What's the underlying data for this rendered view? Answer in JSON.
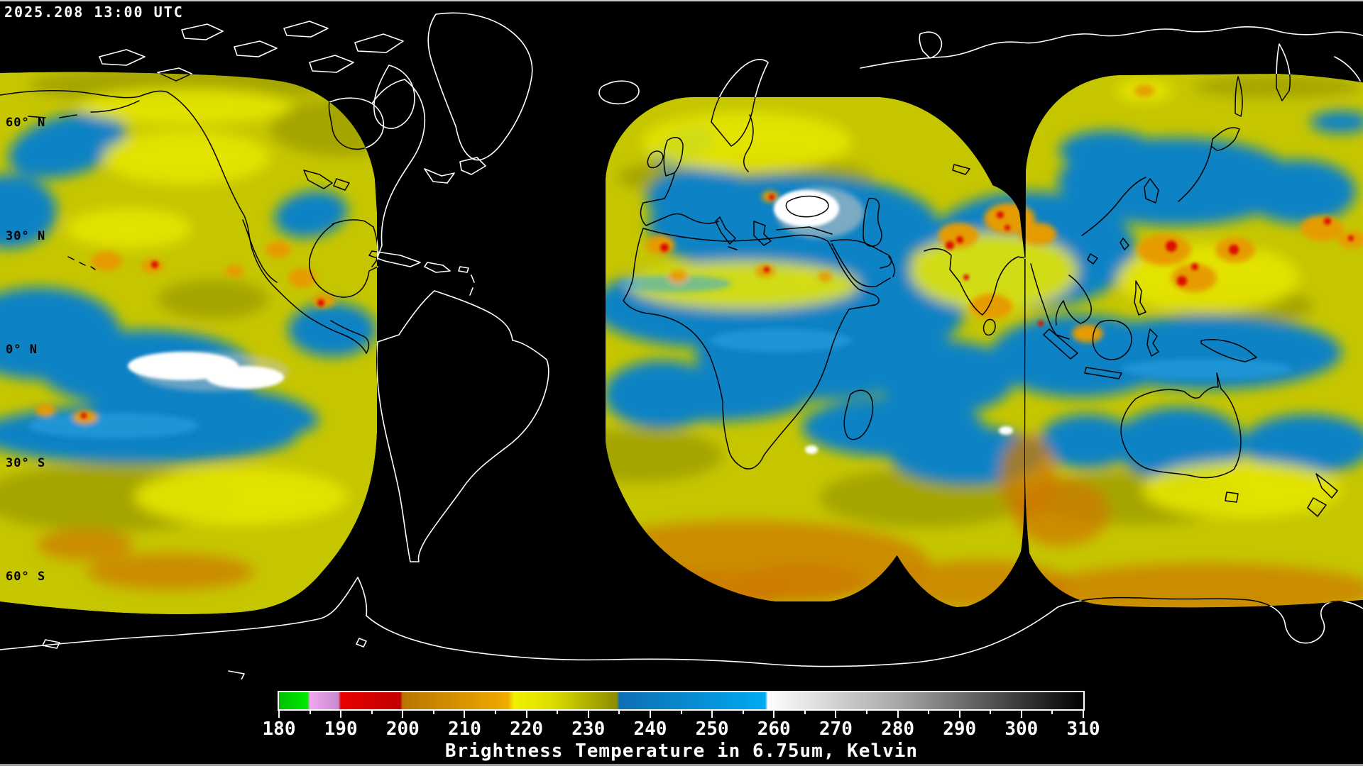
{
  "header": {
    "timestamp": "2025.208 13:00 UTC"
  },
  "map": {
    "latitude_labels": [
      {
        "label": "60° N",
        "lat": 60
      },
      {
        "label": "30° N",
        "lat": 30
      },
      {
        "label": "0° N",
        "lat": 0
      },
      {
        "label": "30° S",
        "lat": -30
      },
      {
        "label": "60° S",
        "lat": -60
      }
    ],
    "grid": {
      "lat_step_deg": 30,
      "lon_step_deg": 30
    },
    "palette": {
      "bg": "#000000",
      "timestamp": "#ffffff",
      "label": "#000000",
      "grid-on-black": "#e8e8e8",
      "grid-on-data": "#000000",
      "coast-on-black": "#ffffff",
      "coast-on-data": "#000000",
      "yellow": "#c6c600",
      "yellow-bright": "#e6e600",
      "olive": "#8f8f00",
      "blue": "#1182c4",
      "blue-light": "#2ea5e6",
      "orange": "#e69b00",
      "orange-deep": "#cc7a00",
      "red": "#dd1100",
      "white": "#ffffff",
      "gray": "#c4c4c4"
    }
  },
  "colorbar": {
    "caption": "Brightness Temperature in 6.75um, Kelvin",
    "min": 180,
    "max": 310,
    "minor_tick_step": 5,
    "label_step": 10,
    "tick_labels": [
      "180",
      "190",
      "200",
      "210",
      "220",
      "230",
      "240",
      "250",
      "260",
      "270",
      "280",
      "290",
      "300",
      "310"
    ],
    "gradient_stops": [
      {
        "value": 180,
        "color": "#00c000"
      },
      {
        "value": 184.6,
        "color": "#00e800"
      },
      {
        "value": 185,
        "color": "#f0a8f0"
      },
      {
        "value": 189.6,
        "color": "#c88ad0"
      },
      {
        "value": 190,
        "color": "#e80000"
      },
      {
        "value": 199.6,
        "color": "#c00000"
      },
      {
        "value": 200,
        "color": "#b87600"
      },
      {
        "value": 217,
        "color": "#f0aa00"
      },
      {
        "value": 218,
        "color": "#f0f000"
      },
      {
        "value": 224,
        "color": "#dede00"
      },
      {
        "value": 234.6,
        "color": "#8c8c00"
      },
      {
        "value": 235,
        "color": "#0e6eb4"
      },
      {
        "value": 258.6,
        "color": "#00aaf0"
      },
      {
        "value": 259,
        "color": "#ffffff"
      },
      {
        "value": 280,
        "color": "#a8a8a8"
      },
      {
        "value": 310,
        "color": "#000000"
      }
    ]
  },
  "chart_data": {
    "type": "heatmap",
    "title": "Brightness Temperature in 6.75um, Kelvin",
    "timestamp": "2025.208 13:00 UTC",
    "units": "Kelvin",
    "channel_um": 6.75,
    "scale_min": 180,
    "scale_max": 310,
    "scale_ticks": [
      180,
      190,
      200,
      210,
      220,
      230,
      240,
      250,
      260,
      270,
      280,
      290,
      300,
      310
    ],
    "legend_position": "bottom",
    "map_grid": {
      "latitude_lines_deg": [
        60,
        30,
        0,
        -30,
        -60
      ],
      "longitude_step_deg": 30
    },
    "value_color_mapping": [
      {
        "range": "180-185",
        "color": "green"
      },
      {
        "range": "185-190",
        "color": "violet"
      },
      {
        "range": "190-200",
        "color": "red"
      },
      {
        "range": "200-218",
        "color": "orange"
      },
      {
        "range": "218-235",
        "color": "yellow-olive"
      },
      {
        "range": "235-259",
        "color": "blue"
      },
      {
        "range": "259-310",
        "color": "white-to-black grayscale"
      }
    ]
  }
}
